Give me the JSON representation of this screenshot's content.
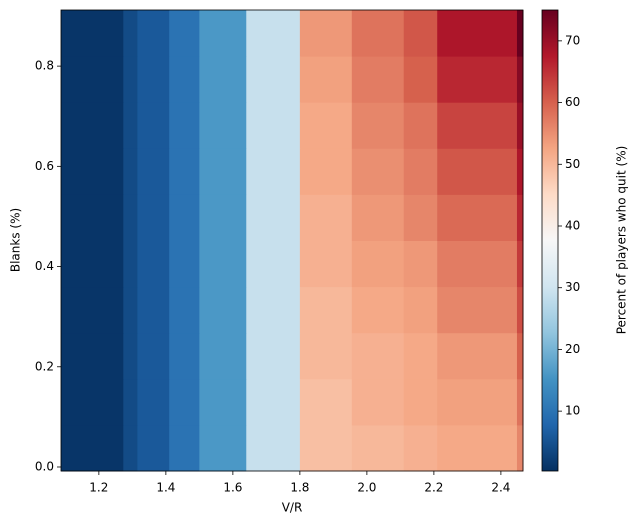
{
  "chart_data": {
    "type": "heatmap",
    "xlabel": "V/R",
    "ylabel": "Blanks (%)",
    "colorbar_label": "Percent of players who quit (%)",
    "x_edges": [
      1.087,
      1.273,
      1.315,
      1.41,
      1.5,
      1.64,
      1.8,
      1.955,
      2.11,
      2.21,
      2.448,
      2.466
    ],
    "y_edges": [
      -0.008,
      0.084,
      0.176,
      0.268,
      0.36,
      0.452,
      0.544,
      0.636,
      0.728,
      0.82,
      0.912
    ],
    "values": [
      [
        1,
        4,
        6,
        10,
        16,
        29,
        49,
        50,
        51,
        52,
        56
      ],
      [
        1,
        4,
        6,
        10,
        16,
        29,
        49,
        51,
        52,
        53,
        58
      ],
      [
        1,
        4,
        6,
        10,
        16,
        29,
        50,
        51,
        52,
        54,
        60
      ],
      [
        1,
        4,
        6,
        10,
        16,
        29,
        50,
        52,
        53,
        56,
        62
      ],
      [
        1,
        4,
        6,
        10,
        16,
        29,
        51,
        53,
        54,
        57,
        64
      ],
      [
        1,
        4,
        6,
        10,
        16,
        29,
        51,
        54,
        56,
        59,
        66
      ],
      [
        1,
        4,
        6,
        10,
        16,
        29,
        52,
        55,
        57,
        61,
        68
      ],
      [
        1,
        4,
        6,
        10,
        16,
        29,
        52,
        56,
        58,
        63,
        70
      ],
      [
        1,
        4,
        6,
        10,
        16,
        29,
        53,
        57,
        60,
        66,
        72
      ],
      [
        1,
        4,
        6,
        10,
        16,
        29,
        54,
        58,
        61,
        68,
        75
      ]
    ],
    "xlim": [
      1.087,
      2.466
    ],
    "ylim": [
      -0.008,
      0.912
    ],
    "xticks": [
      1.2,
      1.4,
      1.6,
      1.8,
      {
        "value": 2.0,
        "label": "2.0"
      },
      2.2,
      2.4
    ],
    "yticks": [
      {
        "value": 0,
        "label": "0.0"
      },
      0.2,
      0.4,
      0.6,
      0.8
    ],
    "clim": [
      0.3,
      75
    ],
    "cticks": [
      10,
      20,
      30,
      40,
      50,
      60,
      70
    ],
    "colormap": [
      "#053061",
      "#2166ac",
      "#4393c3",
      "#92c5de",
      "#d1e5f0",
      "#f7f7f7",
      "#fddbc7",
      "#f4a582",
      "#d6604d",
      "#b2182b",
      "#67001f"
    ]
  }
}
